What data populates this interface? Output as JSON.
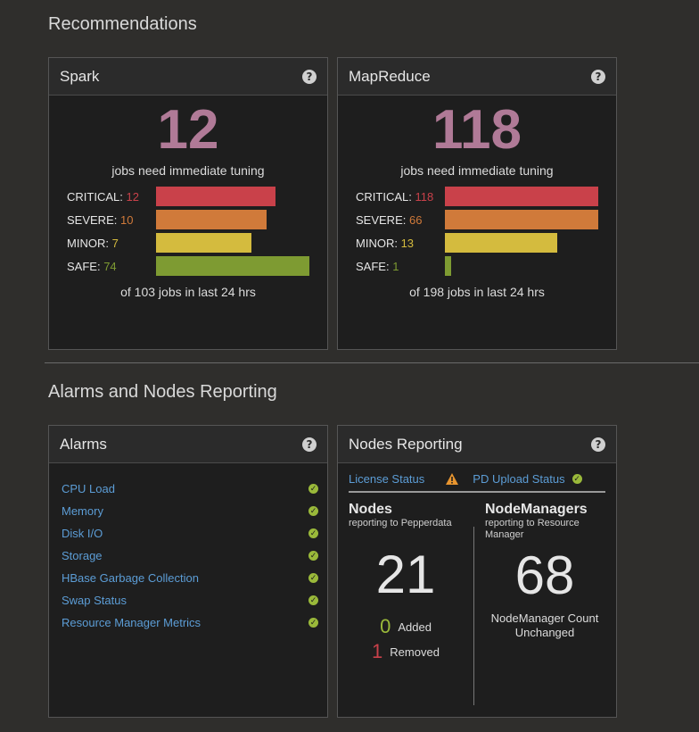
{
  "recommendations": {
    "title": "Recommendations",
    "spark": {
      "title": "Spark",
      "count": "12",
      "subtitle": "jobs need immediate tuning",
      "rows": [
        {
          "label": "CRITICAL:",
          "value": 12,
          "value_text": "12",
          "color": "#c9414a"
        },
        {
          "label": "SEVERE:",
          "value": 10,
          "value_text": "10",
          "color": "#d07a3a"
        },
        {
          "label": "MINOR:",
          "value": 7,
          "value_text": "7",
          "color": "#d4bb3e"
        },
        {
          "label": "SAFE:",
          "value": 74,
          "value_text": "74",
          "color": "#7e9b32"
        }
      ],
      "bar_fractions": [
        0.78,
        0.72,
        0.62,
        1.0
      ],
      "footer": "of 103 jobs in last 24 hrs"
    },
    "mapreduce": {
      "title": "MapReduce",
      "count": "118",
      "subtitle": "jobs need immediate tuning",
      "rows": [
        {
          "label": "CRITICAL:",
          "value": 118,
          "value_text": "118",
          "color": "#c9414a"
        },
        {
          "label": "SEVERE:",
          "value": 66,
          "value_text": "66",
          "color": "#d07a3a"
        },
        {
          "label": "MINOR:",
          "value": 13,
          "value_text": "13",
          "color": "#d4bb3e"
        },
        {
          "label": "SAFE:",
          "value": 1,
          "value_text": "1",
          "color": "#7e9b32"
        }
      ],
      "bar_fractions": [
        1.0,
        1.0,
        0.73,
        0.04
      ],
      "footer": "of 198 jobs in last 24 hrs"
    }
  },
  "alarms_section": {
    "title": "Alarms and Nodes Reporting",
    "alarms": {
      "title": "Alarms",
      "items": [
        "CPU Load",
        "Memory",
        "Disk I/O",
        "Storage",
        "HBase Garbage Collection",
        "Swap Status",
        "Resource Manager Metrics"
      ]
    },
    "nodes": {
      "title": "Nodes Reporting",
      "license_status": "License Status",
      "pd_upload_status": "PD Upload Status",
      "nodes_title": "Nodes",
      "nodes_sub": "reporting to Pepperdata",
      "nodes_count": "21",
      "added_count": "0",
      "added_label": "Added",
      "removed_count": "1",
      "removed_label": "Removed",
      "nm_title": "NodeManagers",
      "nm_sub": "reporting to Resource Manager",
      "nm_count": "68",
      "nm_status": "NodeManager Count Unchanged"
    }
  },
  "colors": {
    "accent_number": "#b07a97",
    "link": "#5c9dd6",
    "ok": "#9ab93a",
    "warn": "#e8952f",
    "added": "#9ab93a",
    "removed": "#c9414a"
  }
}
